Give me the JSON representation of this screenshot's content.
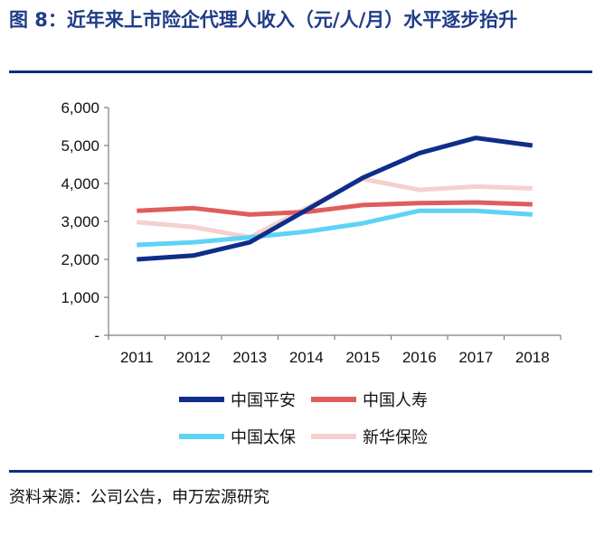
{
  "figure": {
    "title": "图 8：近年来上市险企代理人收入（元/人/月）水平逐步抬升",
    "source": "资料来源：公司公告，申万宏源研究"
  },
  "colors": {
    "brand": "#1f3c88",
    "rule": "#0b2f7a"
  },
  "chart_data": {
    "type": "line",
    "categories": [
      "2011",
      "2012",
      "2013",
      "2014",
      "2015",
      "2016",
      "2017",
      "2018"
    ],
    "ylim": [
      0,
      6000
    ],
    "y_ticks": [
      "-",
      "1,000",
      "2,000",
      "3,000",
      "4,000",
      "5,000",
      "6,000"
    ],
    "grid": false,
    "legend_position": "bottom",
    "series": [
      {
        "name": "中国平安",
        "color": "#0f2d8a",
        "values": [
          2000,
          2100,
          2450,
          3300,
          4150,
          4800,
          5200,
          5000
        ]
      },
      {
        "name": "中国人寿",
        "color": "#df5d5d",
        "values": [
          3280,
          3350,
          3180,
          3250,
          3430,
          3480,
          3500,
          3450
        ]
      },
      {
        "name": "中国太保",
        "color": "#5dd3f5",
        "values": [
          2380,
          2450,
          2580,
          2730,
          2950,
          3280,
          3280,
          3180
        ]
      },
      {
        "name": "新华保险",
        "color": "#f6cfcf",
        "values": [
          2980,
          2850,
          2580,
          3350,
          4120,
          3830,
          3920,
          3870
        ]
      }
    ]
  }
}
